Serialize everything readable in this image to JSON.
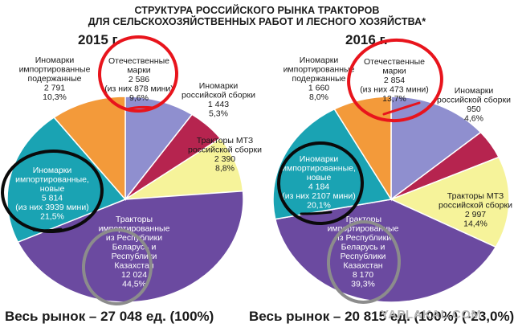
{
  "title_line1": "СТРУКТУРА РОССИЙСКОГО РЫНКА ТРАКТОРОВ",
  "title_line2": "ДЛЯ СЕЛЬСКОХОЗЯЙСТВЕННЫХ РАБОТ И ЛЕСНОГО ХОЗЯЙСТВА*",
  "watermark": "YAPLAKAL.COM",
  "annotation_colors": {
    "red": "#e8141c",
    "black": "#0a0a0a",
    "gray": "#8c8c8c"
  },
  "chart_data": [
    {
      "type": "pie",
      "title": "2015 г.",
      "total": "Весь рынок – 27 048 ед. (100%)",
      "slices": [
        {
          "label": [
            "Отечественные",
            "марки",
            "2 586",
            "(из них 878 мини)",
            "9,6%"
          ],
          "value": 2586,
          "percent": 9.6,
          "color": "#8f8fcf"
        },
        {
          "label": [
            "Иномарки",
            "российской сборки",
            "1 443",
            "5,3%"
          ],
          "value": 1443,
          "percent": 5.3,
          "color": "#b6244f"
        },
        {
          "label": [
            "Тракторы МТЗ",
            "российской сборки",
            "2 390",
            "8,8%"
          ],
          "value": 2390,
          "percent": 8.8,
          "color": "#f6f39a"
        },
        {
          "label": [
            "Тракторы",
            "импортированные",
            "из Республики",
            "Беларусь и",
            "Республики",
            "Казахстан",
            "12 024",
            "44,5%"
          ],
          "value": 12024,
          "percent": 44.5,
          "color": "#6b4aa0"
        },
        {
          "label": [
            "Иномарки",
            "импортированные,",
            "новые",
            "5 814",
            "(из них 3939 мини)",
            "21,5%"
          ],
          "value": 5814,
          "percent": 21.5,
          "color": "#1aa3b3"
        },
        {
          "label": [
            "Иномарки",
            "импортированные",
            "подержанные",
            "2 791",
            "10,3%"
          ],
          "value": 2791,
          "percent": 10.3,
          "color": "#f39a3a"
        }
      ]
    },
    {
      "type": "pie",
      "title": "2016 г.",
      "total": "Весь рынок – 20 815 ед. (100%) (-23,0%)",
      "slices": [
        {
          "label": [
            "Отечественные",
            "марки",
            "2 854",
            "(из них 473 мини)",
            "13,7%"
          ],
          "value": 2854,
          "percent": 13.7,
          "color": "#8f8fcf"
        },
        {
          "label": [
            "Иномарки",
            "российской сборки",
            "950",
            "4,6%"
          ],
          "value": 950,
          "percent": 4.6,
          "color": "#b6244f"
        },
        {
          "label": [
            "Тракторы МТЗ",
            "российской сборки",
            "2 997",
            "14,4%"
          ],
          "value": 2997,
          "percent": 14.4,
          "color": "#f6f39a"
        },
        {
          "label": [
            "Тракторы",
            "импортированные",
            "из Республики",
            "Беларусь и",
            "Республики",
            "Казахстан",
            "8 170",
            "39,3%"
          ],
          "value": 8170,
          "percent": 39.3,
          "color": "#6b4aa0"
        },
        {
          "label": [
            "Иномарки",
            "импортированные,",
            "новые",
            "4 184",
            "(из них 2107 мини)",
            "20,1%"
          ],
          "value": 4184,
          "percent": 20.1,
          "color": "#1aa3b3"
        },
        {
          "label": [
            "Иномарки",
            "импортированные",
            "подержанные",
            "1 660",
            "8,0%"
          ],
          "value": 1660,
          "percent": 8.0,
          "color": "#f39a3a"
        }
      ]
    }
  ]
}
